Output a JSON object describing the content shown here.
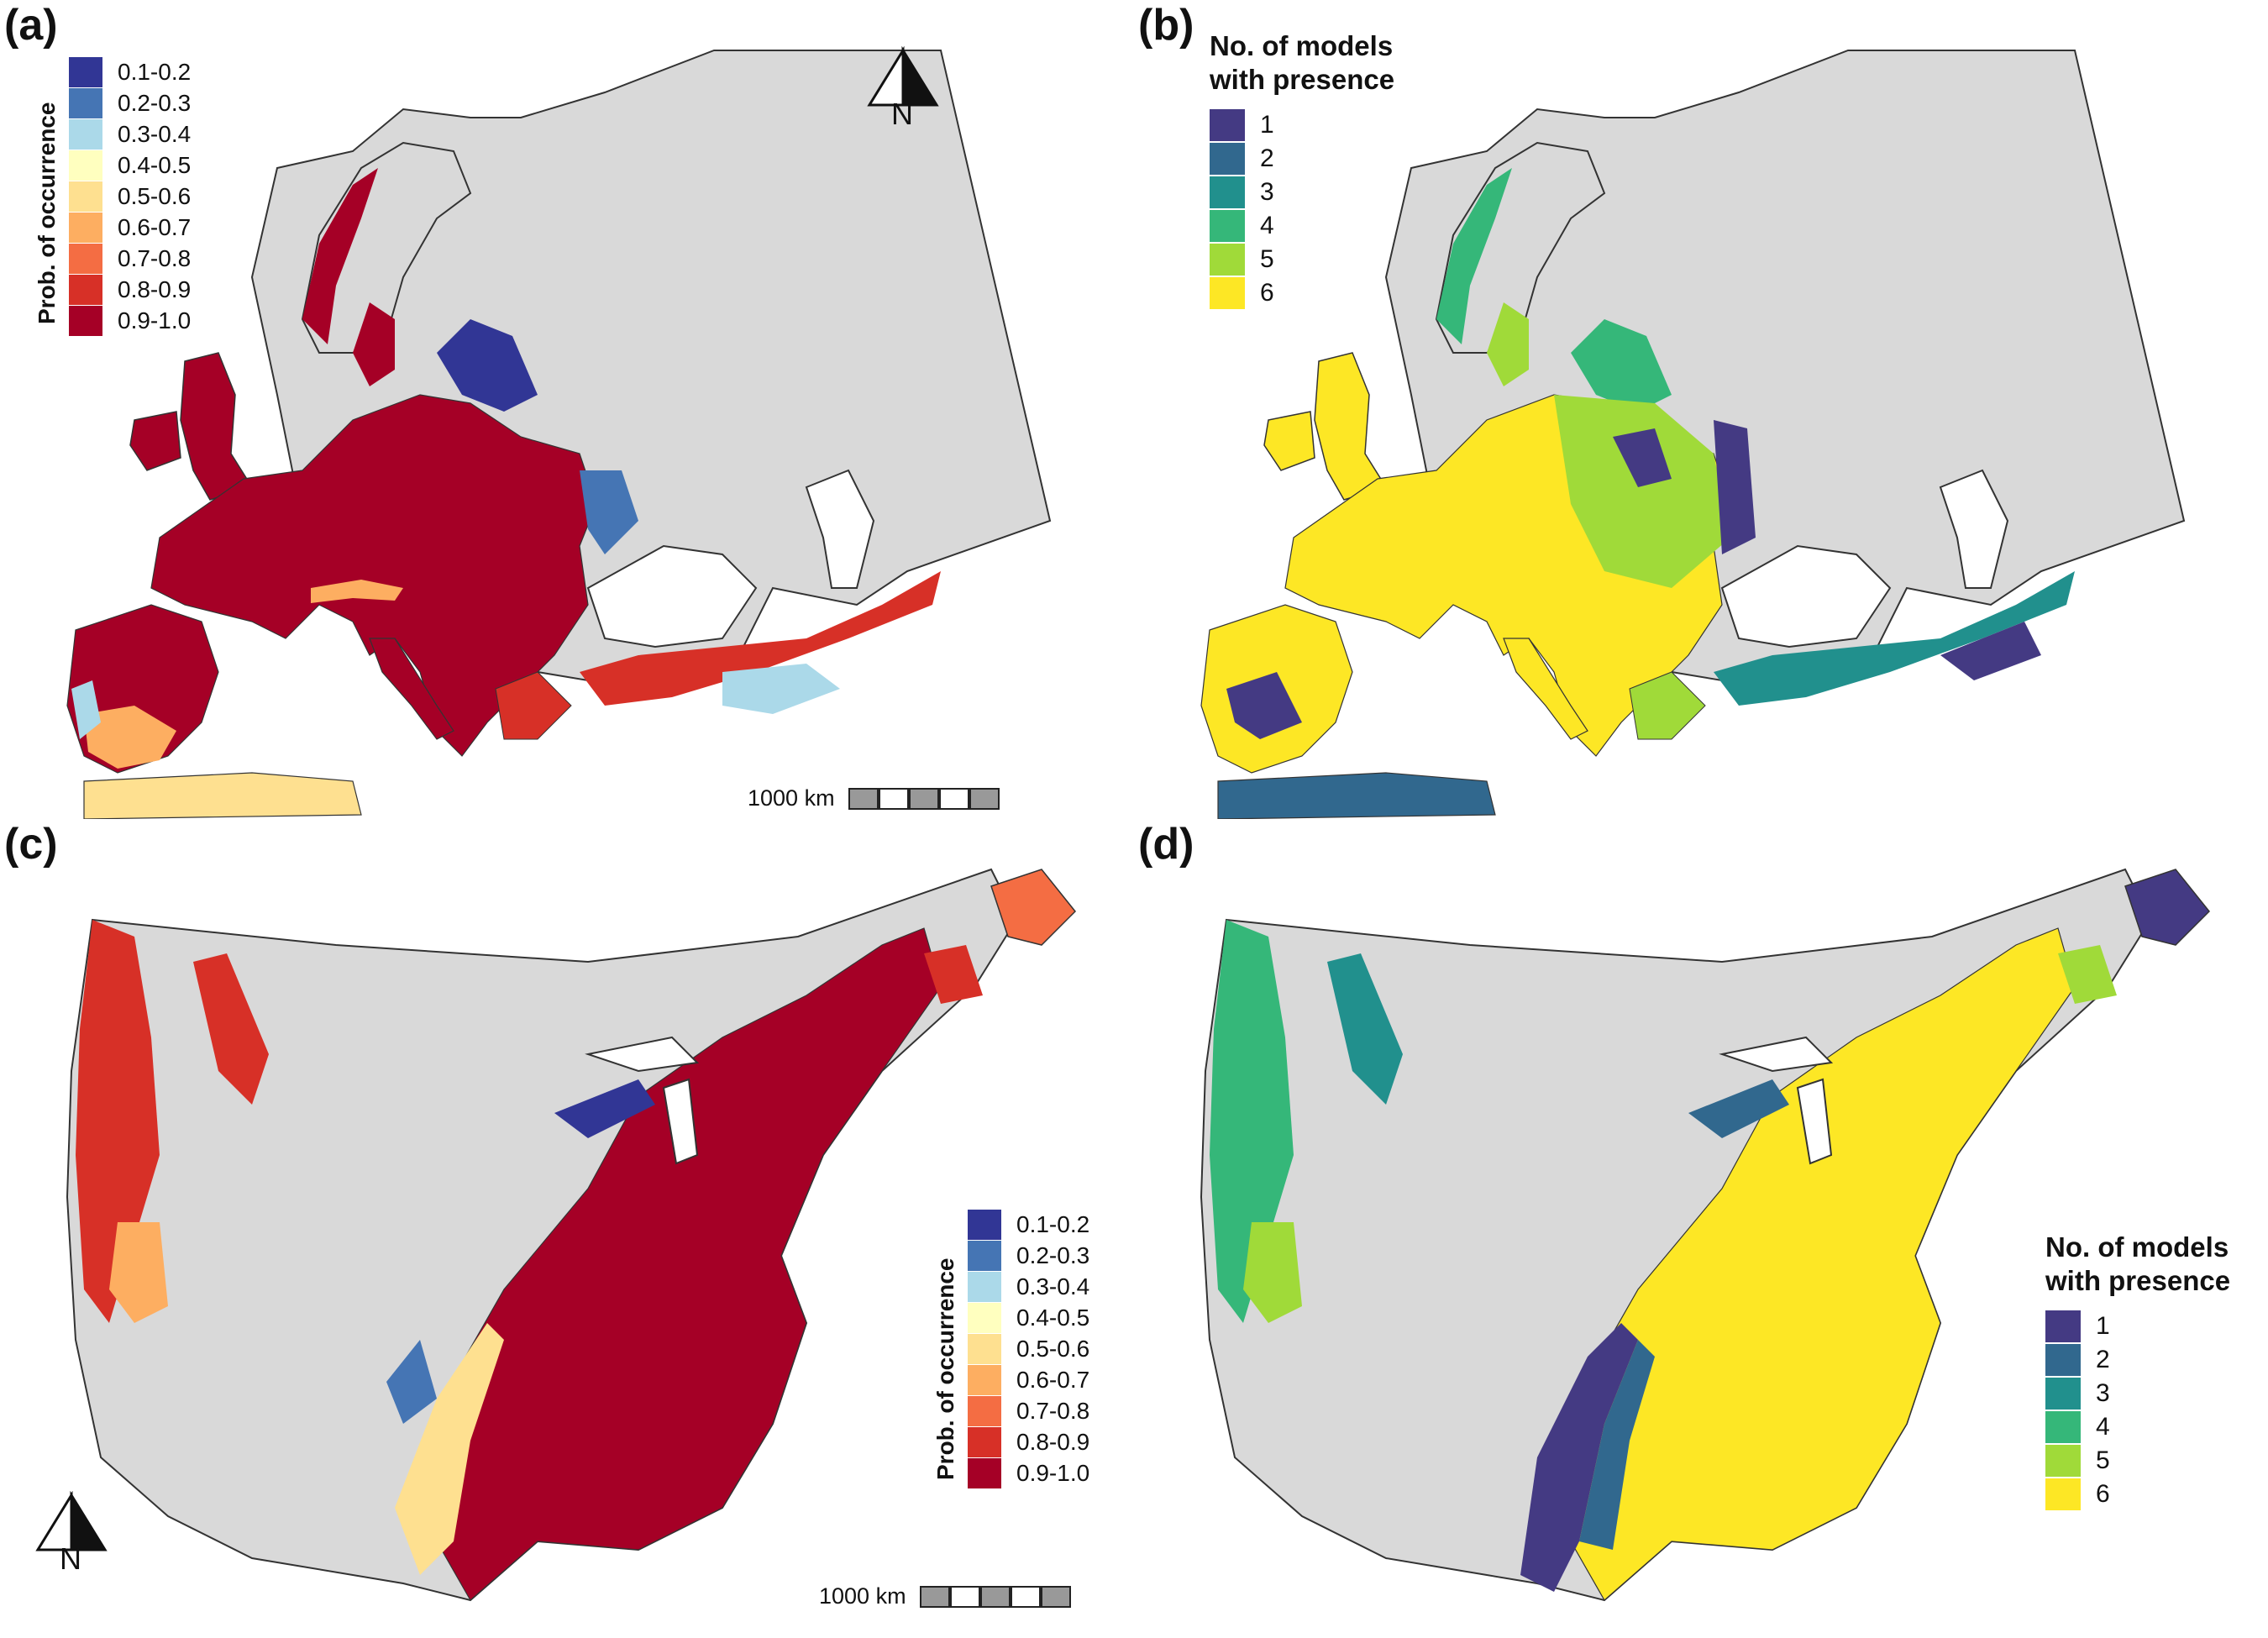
{
  "panels": {
    "a": {
      "label": "(a)"
    },
    "b": {
      "label": "(b)"
    },
    "c": {
      "label": "(c)"
    },
    "d": {
      "label": "(d)"
    }
  },
  "probability_legend": {
    "title": "Prob. of occurrence",
    "classes": [
      {
        "label": "0.1-0.2",
        "color": "#313695"
      },
      {
        "label": "0.2-0.3",
        "color": "#4575b4"
      },
      {
        "label": "0.3-0.4",
        "color": "#abd9e9"
      },
      {
        "label": "0.4-0.5",
        "color": "#ffffbf"
      },
      {
        "label": "0.5-0.6",
        "color": "#fee090"
      },
      {
        "label": "0.6-0.7",
        "color": "#fdae61"
      },
      {
        "label": "0.7-0.8",
        "color": "#f46d43"
      },
      {
        "label": "0.8-0.9",
        "color": "#d73027"
      },
      {
        "label": "0.9-1.0",
        "color": "#a50026"
      }
    ]
  },
  "models_legend": {
    "title_line1": "No. of models",
    "title_line2": "with presence",
    "classes": [
      {
        "label": "1",
        "color": "#443a83"
      },
      {
        "label": "2",
        "color": "#31688e"
      },
      {
        "label": "3",
        "color": "#21908d"
      },
      {
        "label": "4",
        "color": "#35b779"
      },
      {
        "label": "5",
        "color": "#a0da39"
      },
      {
        "label": "6",
        "color": "#fde725"
      }
    ]
  },
  "scale_bar": {
    "label": "1000 km",
    "segments": 5
  },
  "north_arrow": {
    "label": "N"
  },
  "colors": {
    "background_land": "#d9d9d9",
    "border": "#333333"
  }
}
